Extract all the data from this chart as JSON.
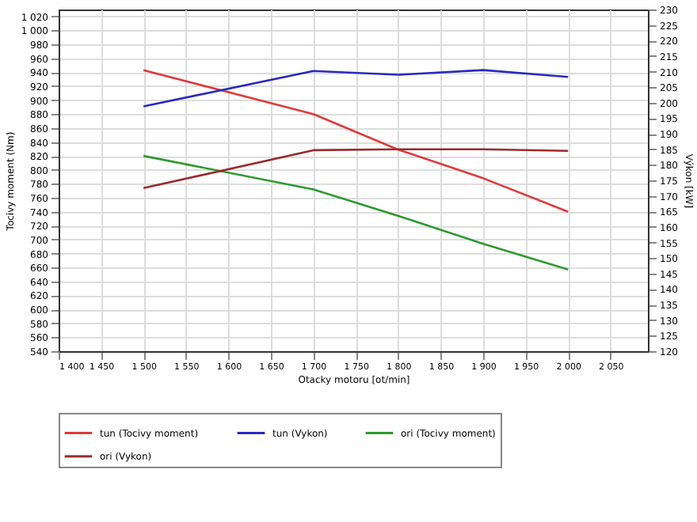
{
  "chart_data": {
    "type": "line",
    "xlabel": "Otacky motoru [ot/min]",
    "ylabel": "Tocivy moment (Nm)",
    "y2label": "Výkon [kW]",
    "xlim": [
      1400,
      2094
    ],
    "xticks": [
      {
        "value": 1400,
        "label": "1 400"
      },
      {
        "value": 1450,
        "label": "1 450"
      },
      {
        "value": 1500,
        "label": "1 500"
      },
      {
        "value": 1550,
        "label": "1 550"
      },
      {
        "value": 1600,
        "label": "1 600"
      },
      {
        "value": 1650,
        "label": "1 650"
      },
      {
        "value": 1700,
        "label": "1 700"
      },
      {
        "value": 1750,
        "label": "1 750"
      },
      {
        "value": 1800,
        "label": "1 800"
      },
      {
        "value": 1850,
        "label": "1 850"
      },
      {
        "value": 1900,
        "label": "1 900"
      },
      {
        "value": 1950,
        "label": "1 950"
      },
      {
        "value": 2000,
        "label": "2 000"
      },
      {
        "value": 2050,
        "label": "2 050"
      }
    ],
    "ylim": [
      540,
      1030
    ],
    "yticks": [
      540,
      560,
      580,
      600,
      620,
      640,
      660,
      680,
      700,
      720,
      740,
      760,
      780,
      800,
      820,
      840,
      860,
      880,
      900,
      920,
      940,
      960,
      980,
      {
        "value": 1000,
        "label": "1 000"
      },
      {
        "value": 1020,
        "label": "1 020"
      }
    ],
    "y2lim": [
      120,
      230
    ],
    "y2ticks": [
      120,
      125,
      130,
      135,
      140,
      145,
      150,
      155,
      160,
      165,
      170,
      175,
      180,
      185,
      190,
      195,
      200,
      205,
      210,
      215,
      220,
      225,
      230
    ],
    "x": [
      1500,
      1700,
      1800,
      1900,
      2000
    ],
    "series": [
      {
        "name": "tun (Tocivy moment)",
        "color": "#e03a3a",
        "values": [
          943,
          880,
          829,
          788,
          740
        ]
      },
      {
        "name": "tun (Vykon)",
        "color": "#2a2ac0",
        "values": [
          198.8,
          210.2,
          209,
          210.5,
          208.3
        ],
        "axis": "y2"
      },
      {
        "name": "ori (Tocivy moment)",
        "color": "#2e9a2e",
        "values": [
          820,
          772,
          734,
          694,
          657
        ]
      },
      {
        "name": "ori (Vykon)",
        "color": "#9b2a2a",
        "values": [
          172.5,
          184.7,
          185,
          185,
          184.5
        ],
        "axis": "y2"
      }
    ],
    "grid": true,
    "legend": "bottom",
    "marker": "none",
    "line_style": "solid"
  }
}
